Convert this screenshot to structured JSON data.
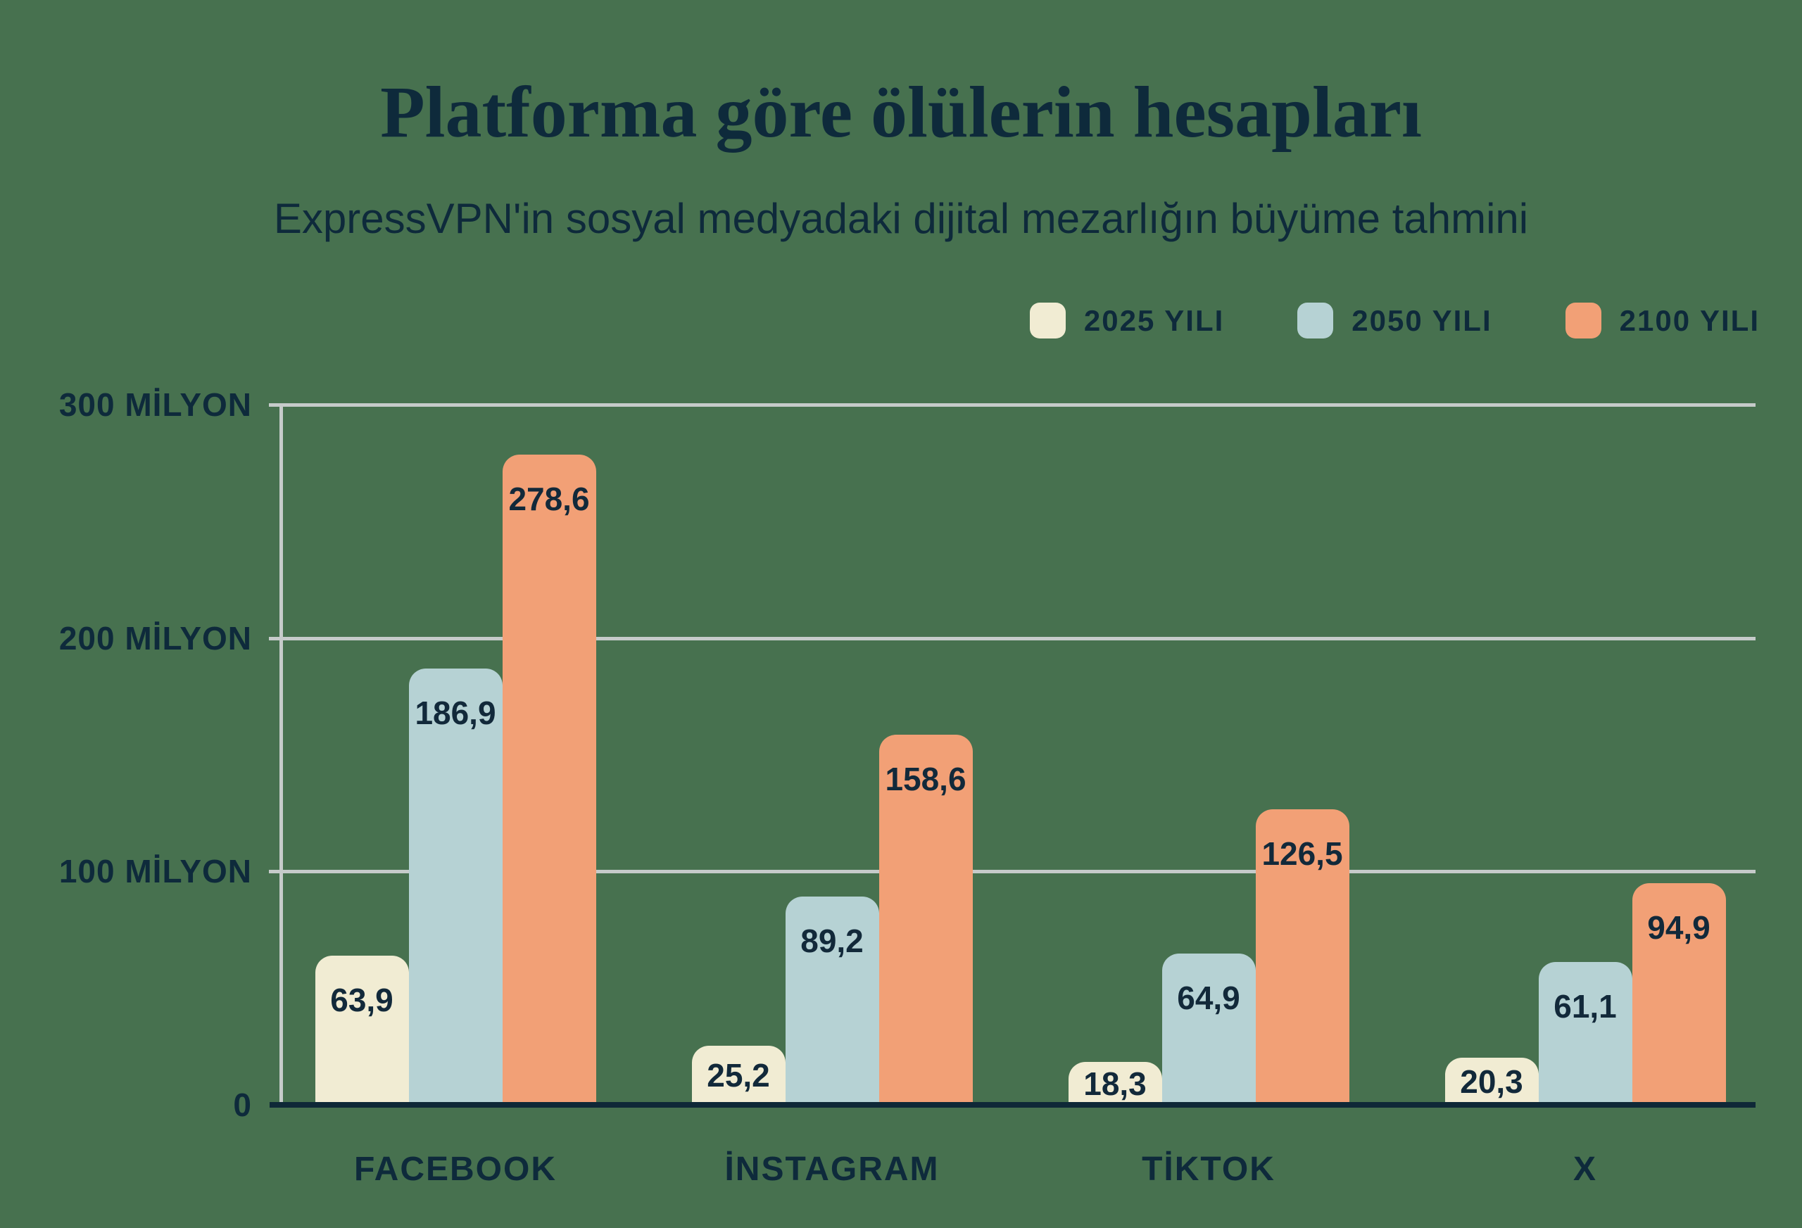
{
  "title": "Platforma göre ölülerin hesapları",
  "subtitle": "ExpressVPN'in sosyal medyadaki dijital mezarlığın büyüme tahmini",
  "colors": {
    "background": "#47714F",
    "text_navy": "#0E2A3B",
    "gridline": "#C6CBCA",
    "axis_baseline": "#0F2837",
    "series_2025": "#F1ECD3",
    "series_2050": "#B6D2D4",
    "series_2100": "#F2A076"
  },
  "chart_data": {
    "type": "bar",
    "categories": [
      "FACEBOOK",
      "İNSTAGRAM",
      "TİKTOK",
      "X"
    ],
    "series": [
      {
        "name": "2025 YILI",
        "color": "#F1ECD3",
        "values": [
          63.9,
          25.2,
          18.3,
          20.3
        ]
      },
      {
        "name": "2050 YILI",
        "color": "#B6D2D4",
        "values": [
          186.9,
          89.2,
          64.9,
          61.1
        ]
      },
      {
        "name": "2100 YILI",
        "color": "#F2A076",
        "values": [
          278.6,
          158.6,
          126.5,
          94.9
        ]
      }
    ],
    "value_label_format": "decimal-comma",
    "y_ticks": [
      {
        "value": 0,
        "label": "0"
      },
      {
        "value": 100,
        "label": "100 MİLYON"
      },
      {
        "value": 200,
        "label": "200 MİLYON"
      },
      {
        "value": 300,
        "label": "300 MİLYON"
      }
    ],
    "ylim": [
      0,
      300
    ],
    "xlabel": "",
    "ylabel": "",
    "grid": true,
    "legend_position": "top-right",
    "value_labels_inside_bars": true
  }
}
